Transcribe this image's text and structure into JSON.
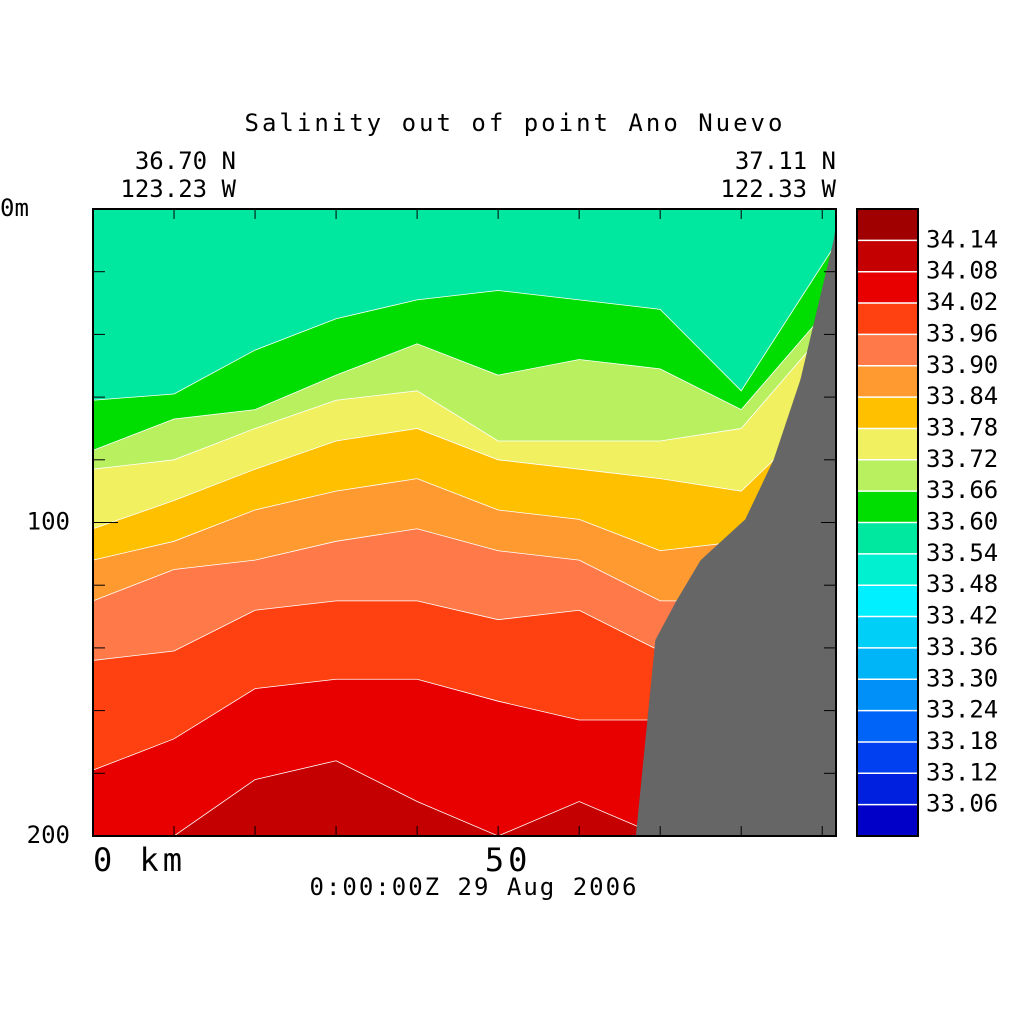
{
  "chart_data": {
    "type": "contour",
    "title": "Salinity out of point Ano Nuevo",
    "left_lat": "36.70 N",
    "left_lon": "123.23 W",
    "right_lat": "37.11 N",
    "right_lon": "122.33 W",
    "timestamp": "0:00:00Z  29 Aug 2006",
    "xlim": [
      0,
      91.7
    ],
    "ylim": [
      200,
      0
    ],
    "xticks": [
      {
        "value": 0,
        "label": "0 km"
      },
      50
    ],
    "xminorticks": [
      10,
      20,
      30,
      40,
      60,
      70,
      80,
      90
    ],
    "yticks": [
      {
        "value": 0,
        "label": "0m"
      },
      100,
      200
    ],
    "yminorticks": [
      20,
      40,
      60,
      80,
      120,
      140,
      160,
      180
    ],
    "x": [
      0,
      10,
      20,
      30,
      40,
      50,
      60,
      70,
      80,
      91.7
    ],
    "contours": [
      {
        "level": 33.6,
        "depth": [
          61,
          59,
          45,
          35,
          29,
          26,
          29,
          32,
          58,
          11
        ]
      },
      {
        "level": 33.66,
        "depth": [
          77,
          67,
          64,
          53,
          43,
          53,
          48,
          51,
          64,
          29
        ]
      },
      {
        "level": 33.72,
        "depth": [
          83,
          80,
          70,
          61,
          58,
          74,
          74,
          74,
          70,
          35
        ]
      },
      {
        "level": 33.78,
        "depth": [
          102,
          93,
          83,
          74,
          70,
          80,
          83,
          86,
          90,
          61
        ]
      },
      {
        "level": 33.84,
        "depth": [
          112,
          106,
          96,
          90,
          86,
          96,
          99,
          109,
          106,
          99
        ]
      },
      {
        "level": 33.9,
        "depth": [
          125,
          115,
          112,
          106,
          102,
          109,
          112,
          125,
          125,
          125
        ]
      },
      {
        "level": 33.96,
        "depth": [
          144,
          141,
          128,
          125,
          125,
          131,
          128,
          141,
          144,
          144
        ]
      },
      {
        "level": 34.02,
        "depth": [
          179,
          169,
          153,
          150,
          150,
          157,
          163,
          163,
          163,
          163
        ]
      },
      {
        "level": 34.08,
        "depth": [
          200,
          200,
          182,
          176,
          189,
          200,
          189,
          200,
          200,
          200
        ]
      }
    ],
    "bottom": {
      "color": "#666666",
      "x": [
        67,
        69.4,
        72,
        75,
        80.5,
        84,
        87.3,
        91.4,
        91.7
      ],
      "depth": [
        200,
        137.5,
        125,
        112,
        99,
        80,
        54.5,
        10,
        5
      ]
    },
    "levels": [
      33.06,
      33.12,
      33.18,
      33.24,
      33.3,
      33.36,
      33.42,
      33.48,
      33.54,
      33.6,
      33.66,
      33.72,
      33.78,
      33.84,
      33.9,
      33.96,
      34.02,
      34.08,
      34.14
    ],
    "level_labels": [
      "33.06",
      "33.12",
      "33.18",
      "33.24",
      "33.30",
      "33.36",
      "33.42",
      "33.48",
      "33.54",
      "33.60",
      "33.66",
      "33.72",
      "33.78",
      "33.84",
      "33.90",
      "33.96",
      "34.02",
      "34.08",
      "34.14"
    ],
    "colors": [
      "#0000c8",
      "#0020e0",
      "#0040f0",
      "#0064f8",
      "#0090f8",
      "#00b4f8",
      "#00d0f8",
      "#00f0ff",
      "#00f0d0",
      "#00e8a0",
      "#00dd00",
      "#b8f060",
      "#f0f060",
      "#ffc000",
      "#ff9a30",
      "#ff7a48",
      "#ff4010",
      "#e80000",
      "#c40000",
      "#a00000"
    ]
  }
}
